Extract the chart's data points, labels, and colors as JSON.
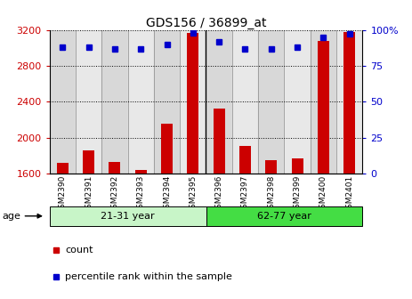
{
  "title": "GDS156 / 36899_at",
  "samples": [
    "GSM2390",
    "GSM2391",
    "GSM2392",
    "GSM2393",
    "GSM2394",
    "GSM2395",
    "GSM2396",
    "GSM2397",
    "GSM2398",
    "GSM2399",
    "GSM2400",
    "GSM2401"
  ],
  "counts": [
    1720,
    1860,
    1730,
    1640,
    2150,
    3170,
    2320,
    1910,
    1750,
    1770,
    3080,
    3175
  ],
  "percentiles": [
    88,
    88,
    87,
    87,
    90,
    98,
    92,
    87,
    87,
    88,
    95,
    97
  ],
  "ylim_left": [
    1600,
    3200
  ],
  "ylim_right": [
    0,
    100
  ],
  "yticks_left": [
    1600,
    2000,
    2400,
    2800,
    3200
  ],
  "yticks_right": [
    0,
    25,
    50,
    75,
    100
  ],
  "groups": [
    {
      "label": "21-31 year",
      "start": 0,
      "end": 6,
      "color": "#b8f0b8"
    },
    {
      "label": "62-77 year",
      "start": 6,
      "end": 12,
      "color": "#44dd44"
    }
  ],
  "bar_color": "#cc0000",
  "dot_color": "#0000cc",
  "col_bg_odd": "#d8d8d8",
  "col_bg_even": "#e8e8e8",
  "grid_dotted_at": [
    2000,
    2400,
    2800
  ],
  "age_label": "age",
  "legend_count_label": "count",
  "legend_percentile_label": "percentile rank within the sample",
  "title_fontsize": 10,
  "tick_fontsize": 8,
  "xtick_fontsize": 6.5,
  "legend_fontsize": 8,
  "group_fontsize": 8
}
